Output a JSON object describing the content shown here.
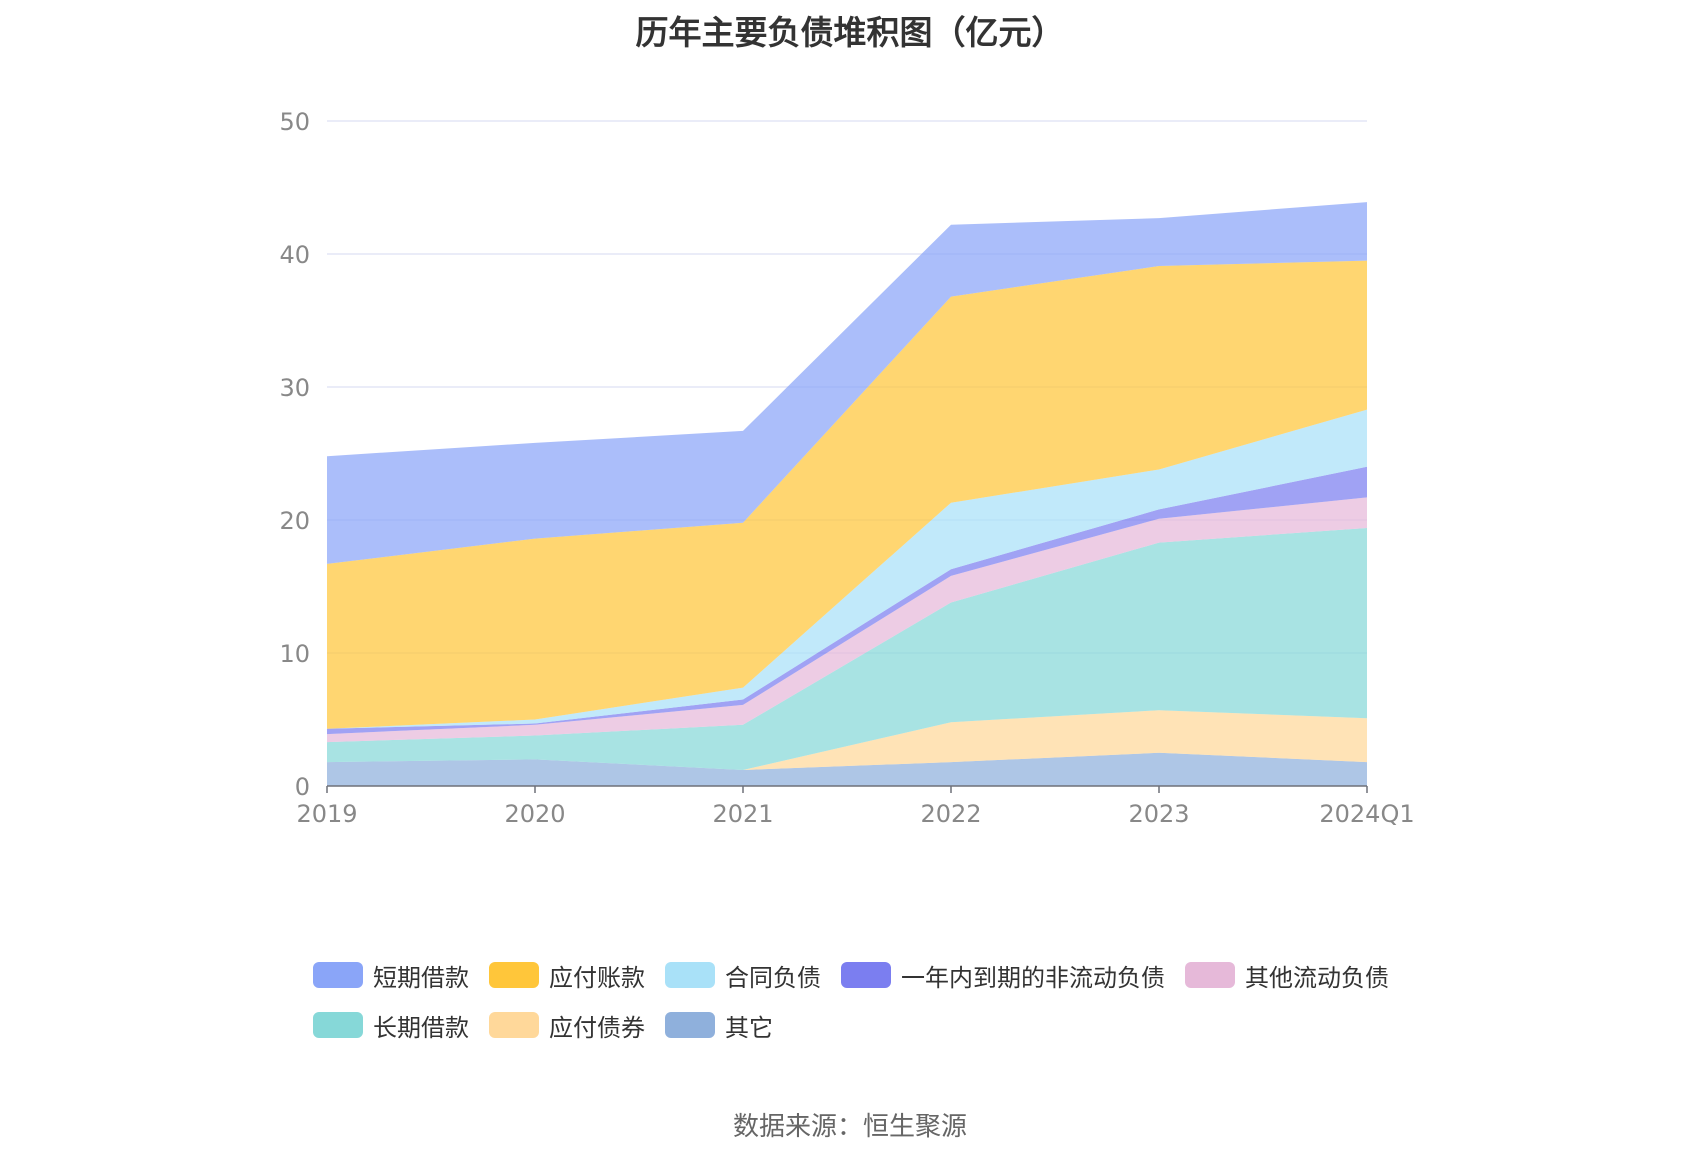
{
  "chart_data": {
    "type": "area",
    "stacked": true,
    "title": "历年主要负债堆积图（亿元）",
    "categories": [
      "2019",
      "2020",
      "2021",
      "2022",
      "2023",
      "2024Q1"
    ],
    "ylim": [
      0,
      50
    ],
    "yticks": [
      0,
      10,
      20,
      30,
      40,
      50
    ],
    "grid": true,
    "legend_position": "bottom",
    "series": [
      {
        "name": "其它",
        "color": "#8fb0dc",
        "values": [
          1.8,
          2.0,
          1.2,
          1.8,
          2.5,
          1.8
        ]
      },
      {
        "name": "应付债券",
        "color": "#ffd89a",
        "values": [
          0.0,
          0.0,
          0.0,
          3.0,
          3.2,
          3.3
        ]
      },
      {
        "name": "长期借款",
        "color": "#86d8d8",
        "values": [
          1.5,
          1.8,
          3.4,
          9.0,
          12.6,
          14.3
        ]
      },
      {
        "name": "其他流动负债",
        "color": "#e6b9d9",
        "values": [
          0.6,
          0.8,
          1.5,
          2.0,
          1.8,
          2.3
        ]
      },
      {
        "name": "一年内到期的非流动负债",
        "color": "#7b7ef0",
        "values": [
          0.4,
          0.1,
          0.4,
          0.5,
          0.7,
          2.3
        ]
      },
      {
        "name": "合同负债",
        "color": "#a9e1f8",
        "values": [
          0.0,
          0.3,
          0.9,
          5.0,
          3.0,
          4.3
        ]
      },
      {
        "name": "应付账款",
        "color": "#ffc63a",
        "values": [
          12.4,
          13.6,
          12.4,
          15.5,
          15.3,
          11.2
        ]
      },
      {
        "name": "短期借款",
        "color": "#8aa5f8",
        "values": [
          8.1,
          7.2,
          6.9,
          5.4,
          3.6,
          4.4
        ]
      }
    ]
  },
  "legend": {
    "row1": [
      "短期借款",
      "应付账款",
      "合同负债",
      "一年内到期的非流动负债",
      "其他流动负债"
    ],
    "row2": [
      "长期借款",
      "应付债券",
      "其它"
    ]
  },
  "source": "数据来源：恒生聚源"
}
